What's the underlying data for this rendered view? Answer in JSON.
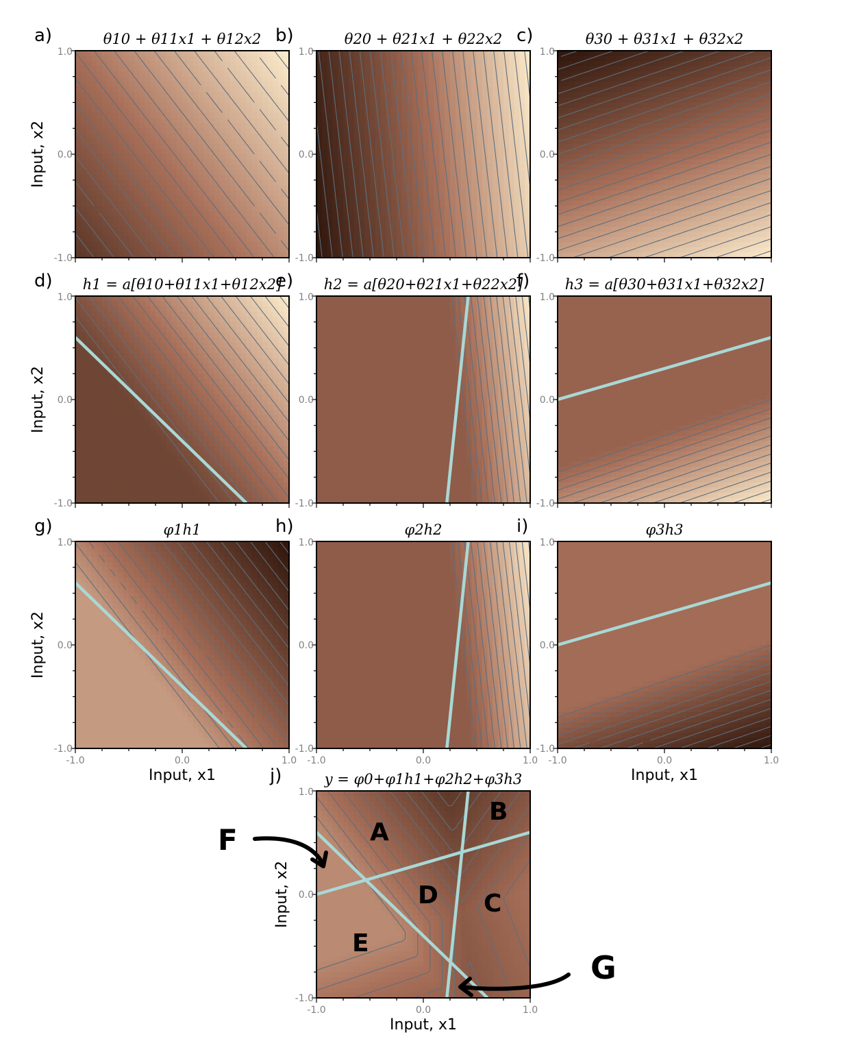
{
  "panels": [
    {
      "id": "a",
      "letter": "a)",
      "title": "θ10 + θ11x1 + θ12x2"
    },
    {
      "id": "b",
      "letter": "b)",
      "title": "θ20 + θ21x1 + θ22x2"
    },
    {
      "id": "c",
      "letter": "c)",
      "title": "θ30 + θ31x1 + θ32x2"
    },
    {
      "id": "d",
      "letter": "d)",
      "title": "h1 = a[θ10+θ11x1+θ12x2]"
    },
    {
      "id": "e",
      "letter": "e)",
      "title": "h2 = a[θ20+θ21x1+θ22x2]"
    },
    {
      "id": "f",
      "letter": "f)",
      "title": "h3 = a[θ30+θ31x1+θ32x2]"
    },
    {
      "id": "g",
      "letter": "g)",
      "title": "φ1h1"
    },
    {
      "id": "h",
      "letter": "h)",
      "title": "φ2h2"
    },
    {
      "id": "i",
      "letter": "i)",
      "title": "φ3h3"
    },
    {
      "id": "j",
      "letter": "j)",
      "title": "y = φ0+φ1h1+φ2h2+φ3h3"
    }
  ],
  "axes": {
    "xlabel": "Input, x1",
    "ylabel": "Input, x2",
    "ticks": [
      "-1.0",
      "0.0",
      "1.0"
    ]
  },
  "region_labels": [
    "A",
    "B",
    "C",
    "D",
    "E",
    "F",
    "G"
  ],
  "colors": {
    "dark": "#2a1208",
    "mid": "#a8705a",
    "light": "#fff0d0",
    "contour": "#5f6e7c",
    "boundary": "#a9d8d6"
  }
}
